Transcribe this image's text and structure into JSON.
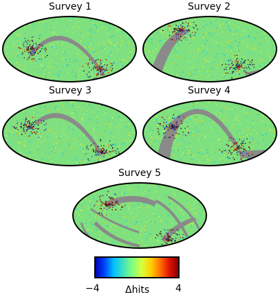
{
  "figure": {
    "panels": [
      {
        "title": "Survey 1"
      },
      {
        "title": "Survey 2"
      },
      {
        "title": "Survey 3"
      },
      {
        "title": "Survey 4"
      },
      {
        "title": "Survey 5"
      }
    ],
    "colorbar": {
      "min_label": "−4",
      "max_label": "4",
      "label": "Δhits",
      "colormap": [
        "#0000aa",
        "#0040ff",
        "#00c0ff",
        "#40e0c0",
        "#80ff80",
        "#d8ff40",
        "#ffd000",
        "#ff7000",
        "#e01000",
        "#800000"
      ]
    },
    "colors": {
      "background_noise": "#7fe07f",
      "masked_region": "#8a8a8a",
      "outline": "#000000"
    }
  }
}
